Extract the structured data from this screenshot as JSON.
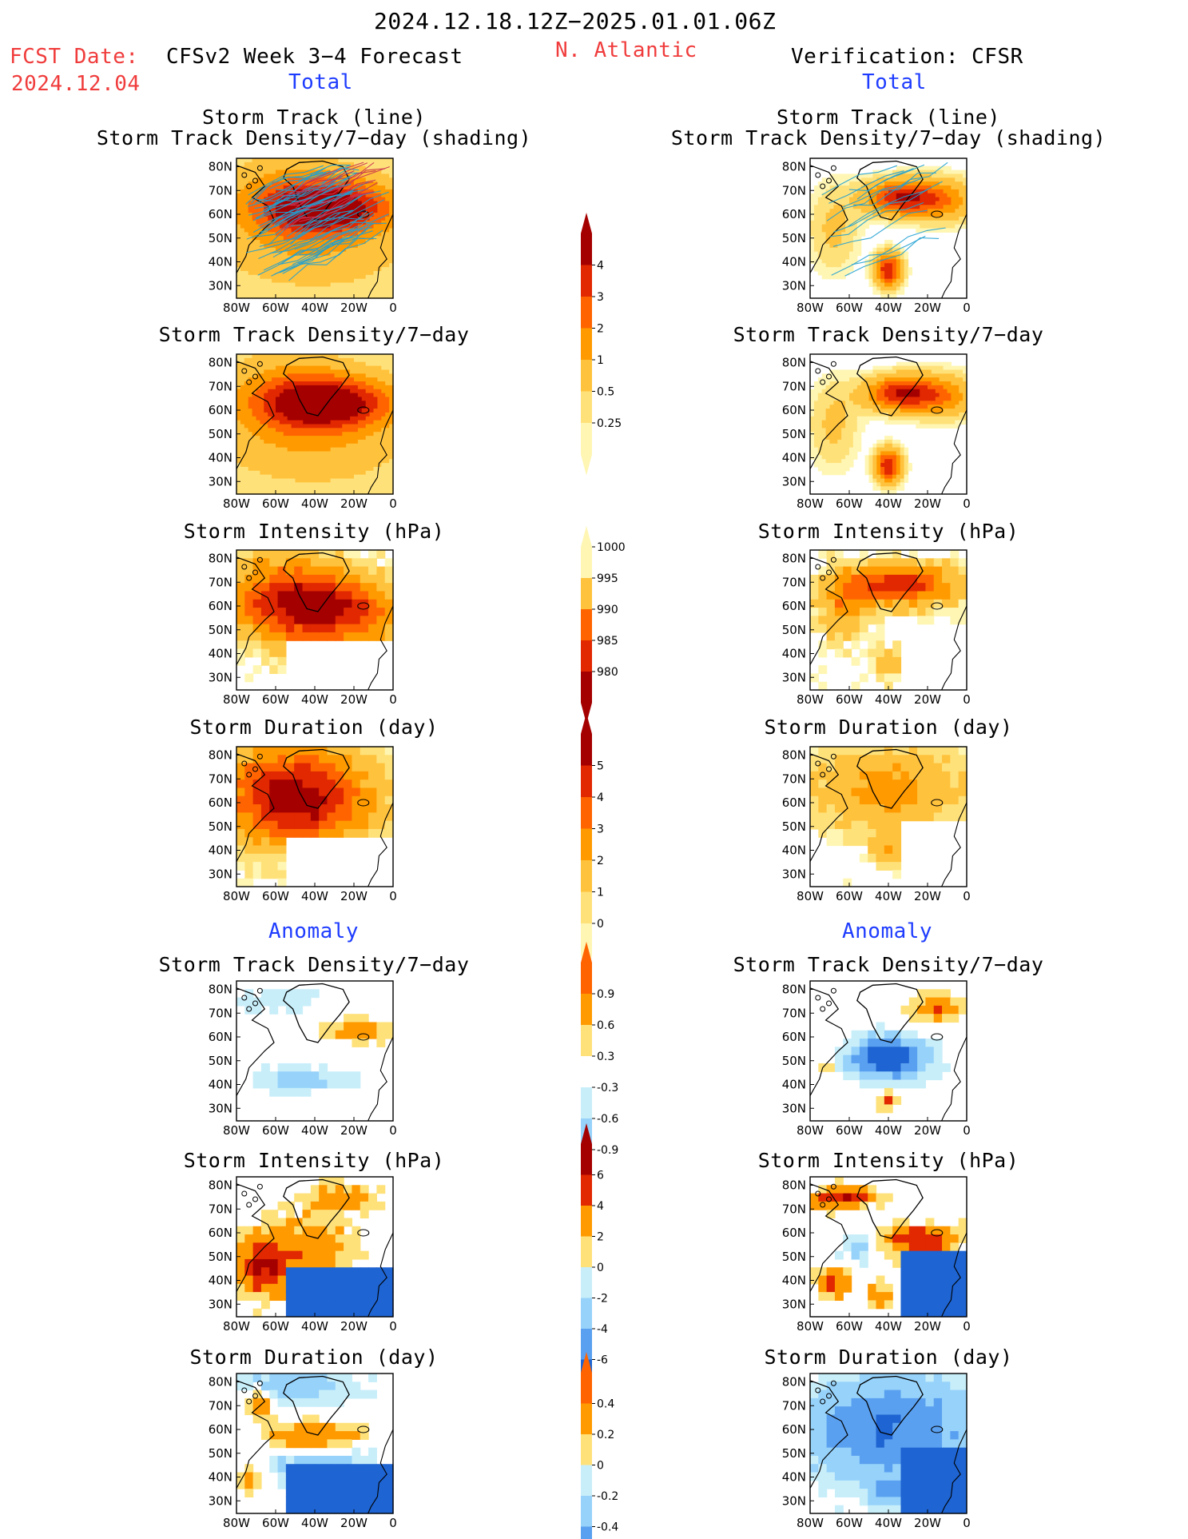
{
  "header": {
    "period": "2024.12.18.12Z−2025.01.01.06Z",
    "fcst_label": "FCST Date:",
    "fcst_date": "2024.12.04",
    "left_title": "CFSv2 Week 3−4 Forecast",
    "region": "N. Atlantic",
    "right_title": "Verification: CFSR",
    "total_left": "Total",
    "total_right": "Total",
    "anomaly_left": "Anomaly",
    "anomaly_right": "Anomaly"
  },
  "axes": {
    "lon_ticks": [
      "80W",
      "60W",
      "40W",
      "20W",
      "0"
    ],
    "lat_ticks": [
      "80N",
      "70N",
      "60N",
      "50N",
      "40N",
      "30N"
    ]
  },
  "panel_titles": {
    "p1a": "Storm Track (line)",
    "p1b": "Storm Track Density/7−day (shading)",
    "p2": "Storm Track Density/7−day",
    "p3": "Storm Intensity (hPa)",
    "p4": "Storm Duration (day)",
    "p5": "Storm Track Density/7−day",
    "p6": "Storm Intensity (hPa)",
    "p7": "Storm Duration (day)"
  },
  "colors": {
    "warm": [
      "#fff6b4",
      "#ffe17a",
      "#ffc23c",
      "#ff9a00",
      "#ff6400",
      "#e12800",
      "#a50000"
    ],
    "cool": [
      "#c8eefa",
      "#96d2fa",
      "#5aa0f0",
      "#1e64d2"
    ],
    "track_line": "#1ea0d2",
    "track_line_dense": "#c83250"
  },
  "chart_data": [
    {
      "type": "heatmap",
      "id": "colorbar_density_total",
      "levels": [
        0.25,
        0.5,
        1,
        2,
        3,
        4
      ]
    },
    {
      "type": "heatmap",
      "id": "colorbar_intensity_total",
      "levels": [
        1000,
        995,
        990,
        985,
        980
      ]
    },
    {
      "type": "heatmap",
      "id": "colorbar_duration_total",
      "levels": [
        0,
        1,
        2,
        3,
        4,
        5
      ]
    },
    {
      "type": "heatmap",
      "id": "colorbar_density_anom",
      "levels": [
        0.9,
        0.6,
        0.3,
        -0.3,
        -0.6,
        -0.9
      ]
    },
    {
      "type": "heatmap",
      "id": "colorbar_intensity_anom",
      "levels": [
        6,
        4,
        2,
        0,
        -2,
        -4,
        -6
      ]
    },
    {
      "type": "heatmap",
      "id": "colorbar_duration_anom",
      "levels": [
        0.4,
        0.2,
        0,
        -0.2,
        -0.4
      ]
    }
  ]
}
